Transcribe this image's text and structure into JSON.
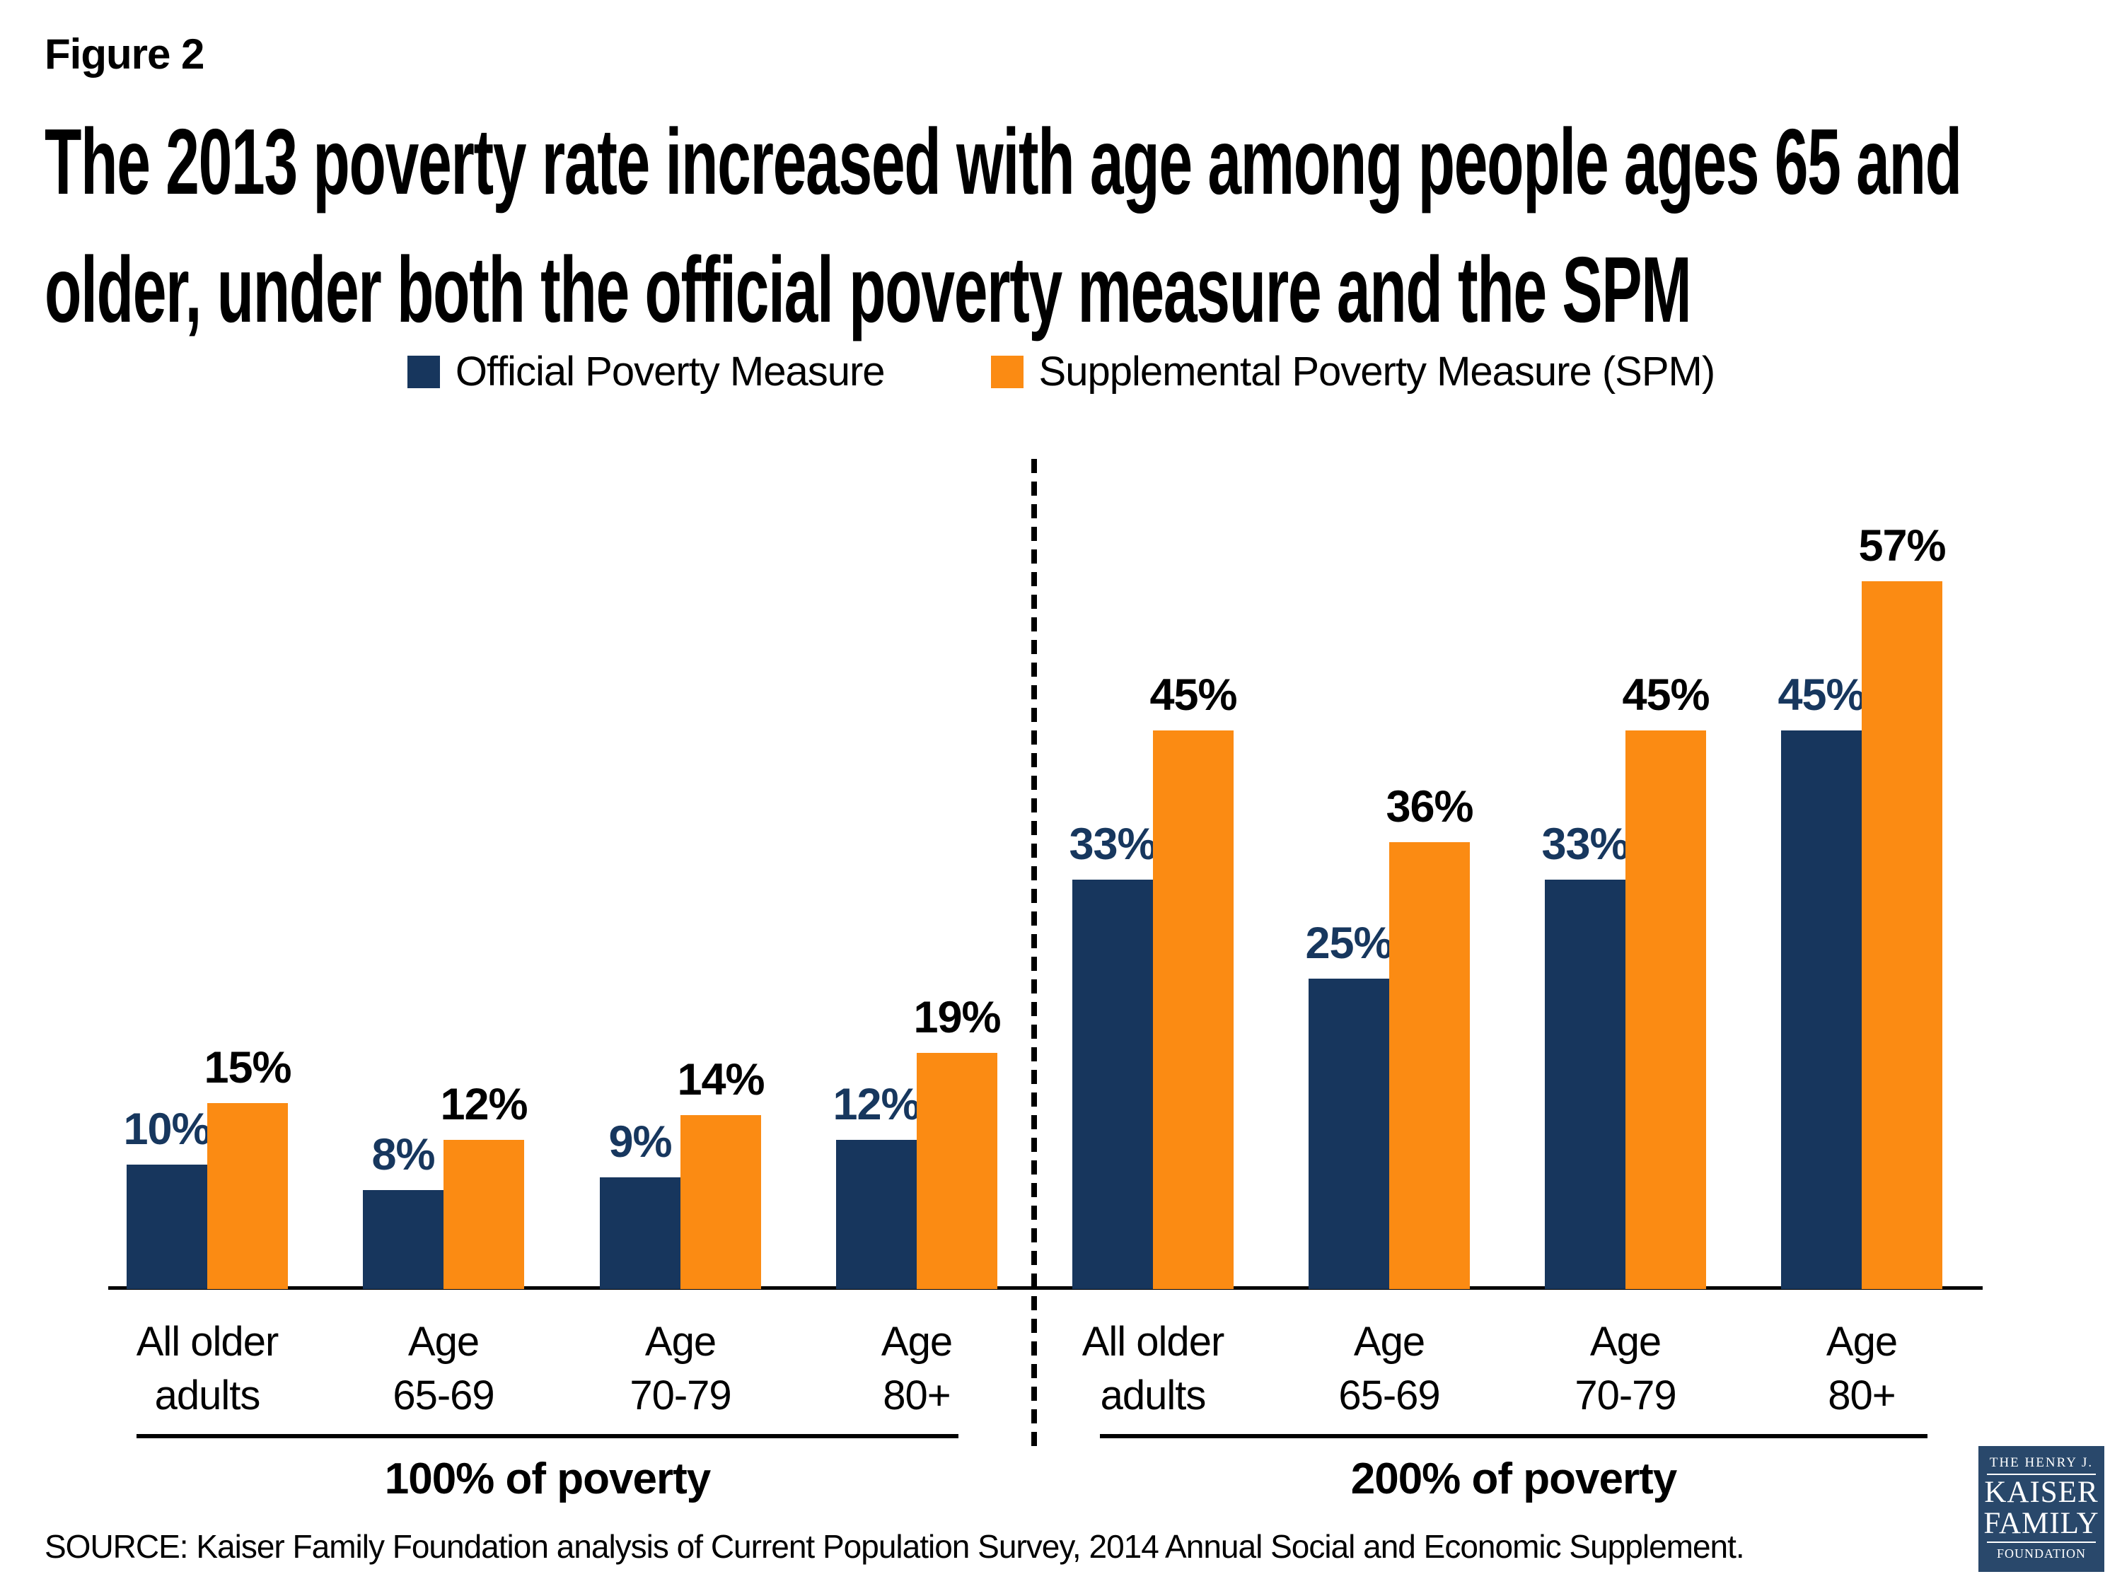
{
  "figure_label": "Figure 2",
  "title_lines": [
    "The 2013 poverty rate increased with age among people ages 65 and",
    "older, under both the official poverty measure and the SPM"
  ],
  "source": "SOURCE: Kaiser Family Foundation analysis of Current Population Survey, 2014 Annual Social and Economic Supplement.",
  "logo": {
    "line1": "THE HENRY J.",
    "line2": "KAISER",
    "line3": "FAMILY",
    "line4": "FOUNDATION",
    "bg_color": "#29486B"
  },
  "chart_data": {
    "type": "bar",
    "title": "2013 poverty rate by age group under the official poverty measure and the SPM",
    "unit": "%",
    "value_suffix": "%",
    "ylim": [
      0,
      60
    ],
    "gridlines": false,
    "legend_position": "top",
    "categories": [
      [
        "All older",
        "adults"
      ],
      [
        "Age",
        "65-69"
      ],
      [
        "Age",
        "70-79"
      ],
      [
        "Age",
        "80+"
      ],
      [
        "All older",
        "adults"
      ],
      [
        "Age",
        "65-69"
      ],
      [
        "Age",
        "70-79"
      ],
      [
        "Age",
        "80+"
      ]
    ],
    "groups": [
      {
        "label": "100% of poverty",
        "category_indexes": [
          0,
          1,
          2,
          3
        ]
      },
      {
        "label": "200% of poverty",
        "category_indexes": [
          4,
          5,
          6,
          7
        ]
      }
    ],
    "series": [
      {
        "name": "Official Poverty Measure",
        "color": "#17365D",
        "label_color": "#17375E",
        "values": [
          10,
          8,
          9,
          12,
          33,
          25,
          33,
          45
        ]
      },
      {
        "name": "Supplemental Poverty Measure (SPM)",
        "color": "#FB8B13",
        "label_color": "#000000",
        "values": [
          15,
          12,
          14,
          19,
          45,
          36,
          45,
          57
        ]
      }
    ]
  }
}
